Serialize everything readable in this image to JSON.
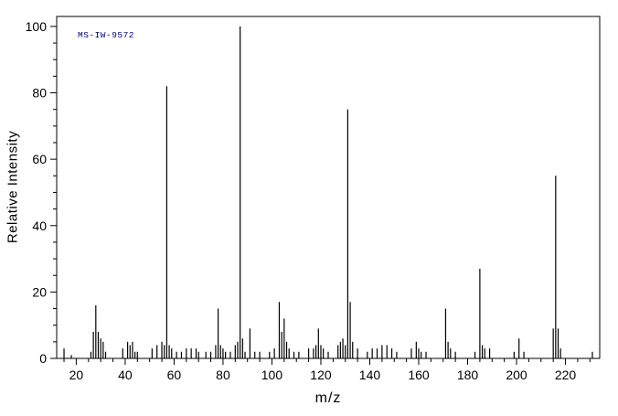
{
  "annotation": {
    "id_label": "MS-IW-9572"
  },
  "colors": {
    "axis": "#000000",
    "peak": "#000000",
    "id_label": "#00007a"
  },
  "chart_data": {
    "type": "bar",
    "title": "MS-IW-9572",
    "xlabel": "m/z",
    "ylabel": "Relative Intensity",
    "xlim": [
      12,
      234
    ],
    "ylim": [
      0,
      103
    ],
    "grid": false,
    "legend": "none",
    "x_major_ticks": [
      20,
      40,
      60,
      80,
      100,
      120,
      140,
      160,
      180,
      200,
      220
    ],
    "x_minor_step": 5,
    "y_major_ticks": [
      0,
      20,
      40,
      60,
      80,
      100
    ],
    "y_minor_step": 5,
    "peaks": [
      [
        15,
        3
      ],
      [
        18,
        1
      ],
      [
        26,
        2
      ],
      [
        27,
        8
      ],
      [
        28,
        16
      ],
      [
        29,
        8
      ],
      [
        30,
        6
      ],
      [
        31,
        5
      ],
      [
        32,
        2
      ],
      [
        39,
        3
      ],
      [
        41,
        5
      ],
      [
        42,
        4
      ],
      [
        43,
        5
      ],
      [
        44,
        2
      ],
      [
        45,
        2
      ],
      [
        51,
        3
      ],
      [
        53,
        4
      ],
      [
        55,
        5
      ],
      [
        56,
        4
      ],
      [
        57,
        82
      ],
      [
        58,
        4
      ],
      [
        59,
        3
      ],
      [
        61,
        2
      ],
      [
        63,
        2
      ],
      [
        65,
        3
      ],
      [
        67,
        3
      ],
      [
        69,
        3
      ],
      [
        70,
        2
      ],
      [
        73,
        2
      ],
      [
        75,
        2
      ],
      [
        77,
        4
      ],
      [
        78,
        15
      ],
      [
        79,
        4
      ],
      [
        80,
        3
      ],
      [
        81,
        2
      ],
      [
        83,
        2
      ],
      [
        85,
        4
      ],
      [
        86,
        5
      ],
      [
        87,
        100
      ],
      [
        88,
        6
      ],
      [
        89,
        2
      ],
      [
        91,
        9
      ],
      [
        93,
        2
      ],
      [
        95,
        2
      ],
      [
        99,
        2
      ],
      [
        101,
        3
      ],
      [
        103,
        17
      ],
      [
        104,
        8
      ],
      [
        105,
        12
      ],
      [
        106,
        5
      ],
      [
        107,
        3
      ],
      [
        109,
        2
      ],
      [
        111,
        2
      ],
      [
        115,
        3
      ],
      [
        117,
        3
      ],
      [
        118,
        4
      ],
      [
        119,
        9
      ],
      [
        120,
        4
      ],
      [
        121,
        3
      ],
      [
        123,
        2
      ],
      [
        127,
        4
      ],
      [
        128,
        5
      ],
      [
        129,
        6
      ],
      [
        130,
        4
      ],
      [
        131,
        75
      ],
      [
        132,
        17
      ],
      [
        133,
        5
      ],
      [
        135,
        3
      ],
      [
        139,
        2
      ],
      [
        141,
        3
      ],
      [
        143,
        3
      ],
      [
        145,
        4
      ],
      [
        147,
        4
      ],
      [
        149,
        3
      ],
      [
        151,
        2
      ],
      [
        157,
        3
      ],
      [
        159,
        5
      ],
      [
        160,
        3
      ],
      [
        161,
        2
      ],
      [
        163,
        2
      ],
      [
        171,
        15
      ],
      [
        172,
        5
      ],
      [
        173,
        3
      ],
      [
        175,
        2
      ],
      [
        183,
        2
      ],
      [
        185,
        27
      ],
      [
        186,
        4
      ],
      [
        187,
        3
      ],
      [
        189,
        3
      ],
      [
        199,
        2
      ],
      [
        201,
        6
      ],
      [
        203,
        2
      ],
      [
        215,
        9
      ],
      [
        216,
        55
      ],
      [
        217,
        9
      ],
      [
        218,
        3
      ],
      [
        231,
        2
      ]
    ]
  }
}
